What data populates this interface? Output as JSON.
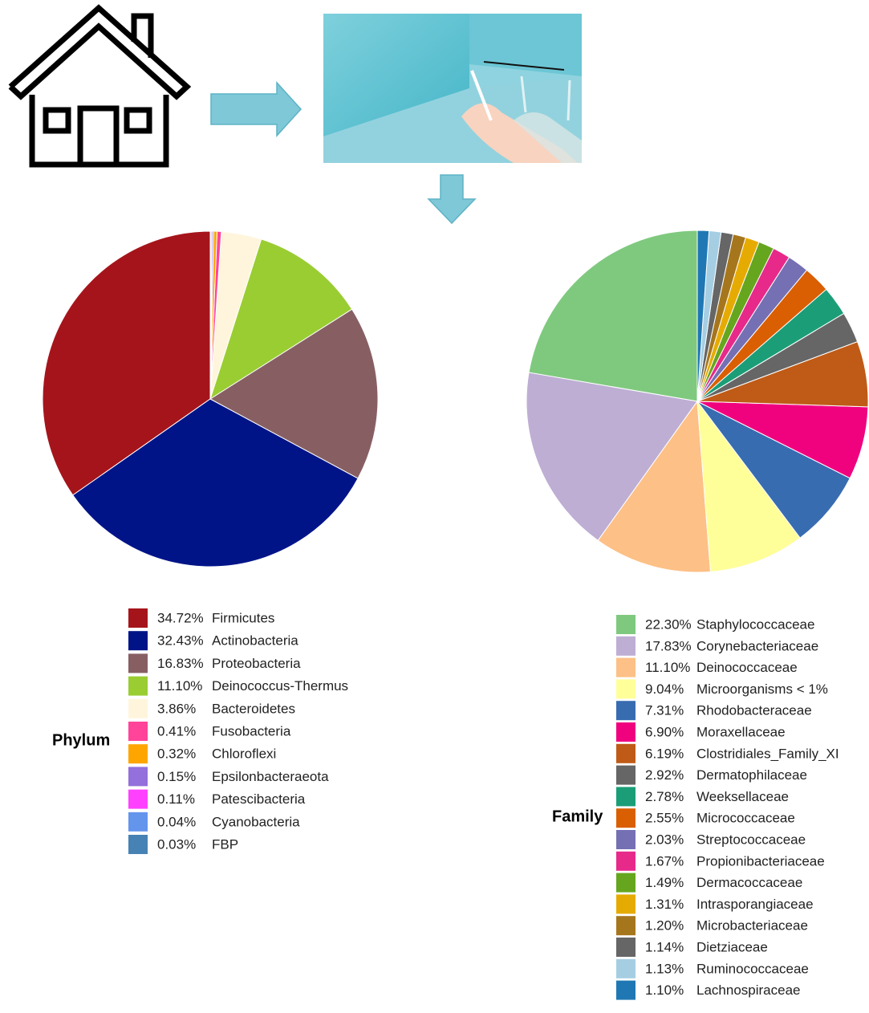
{
  "chart_data": [
    {
      "type": "pie",
      "legend_title": "Phylum",
      "categories": [
        "Firmicutes",
        "Actinobacteria",
        "Proteobacteria",
        "Deinococcus-Thermus",
        "Bacteroidetes",
        "Fusobacteria",
        "Chloroflexi",
        "Epsilonbacteraeota",
        "Patescibacteria",
        "Cyanobacteria",
        "FBP"
      ],
      "values": [
        34.72,
        32.43,
        16.83,
        11.1,
        3.86,
        0.41,
        0.32,
        0.15,
        0.11,
        0.04,
        0.03
      ],
      "value_labels": [
        "34.72%",
        "32.43%",
        "16.83%",
        "11.10%",
        "3.86%",
        "0.41%",
        "0.32%",
        "0.15%",
        "0.11%",
        "0.04%",
        "0.03%"
      ],
      "colors": [
        "#a6141b",
        "#001488",
        "#875f63",
        "#9acd32",
        "#fff5dc",
        "#ff4499",
        "#ffa500",
        "#9370db",
        "#ff40ff",
        "#6495ed",
        "#4682b4"
      ]
    },
    {
      "type": "pie",
      "legend_title": "Family",
      "categories": [
        "Staphylococcaceae",
        "Corynebacteriaceae",
        "Deinococcaceae",
        "Microorganisms < 1%",
        "Rhodobacteraceae",
        "Moraxellaceae",
        "Clostridiales_Family_XI",
        "Dermatophilaceae",
        "Weeksellaceae",
        "Micrococcaceae",
        "Streptococcaceae",
        "Propionibacteriaceae",
        "Dermacoccaceae",
        "Intrasporangiaceae",
        "Microbacteriaceae",
        "Dietziaceae",
        "Ruminococcaceae",
        "Lachnospiraceae"
      ],
      "values": [
        22.3,
        17.83,
        11.1,
        9.04,
        7.31,
        6.9,
        6.19,
        2.92,
        2.78,
        2.55,
        2.03,
        1.67,
        1.49,
        1.31,
        1.2,
        1.14,
        1.13,
        1.1
      ],
      "value_labels": [
        "22.30%",
        "17.83%",
        "11.10%",
        "9.04%",
        "7.31%",
        "6.90%",
        "6.19%",
        "2.92%",
        "2.78%",
        "2.55%",
        "2.03%",
        "1.67%",
        "1.49%",
        "1.31%",
        "1.20%",
        "1.14%",
        "1.13%",
        "1.10%"
      ],
      "colors": [
        "#7fc97f",
        "#beaed4",
        "#fdc086",
        "#ffff99",
        "#386cb0",
        "#f0027f",
        "#bf5b17",
        "#666666",
        "#1b9e77",
        "#d95f02",
        "#7570b3",
        "#e7298a",
        "#66a61e",
        "#e6ab02",
        "#a6761d",
        "#666666",
        "#a6cee3",
        "#1f78b4"
      ]
    }
  ]
}
